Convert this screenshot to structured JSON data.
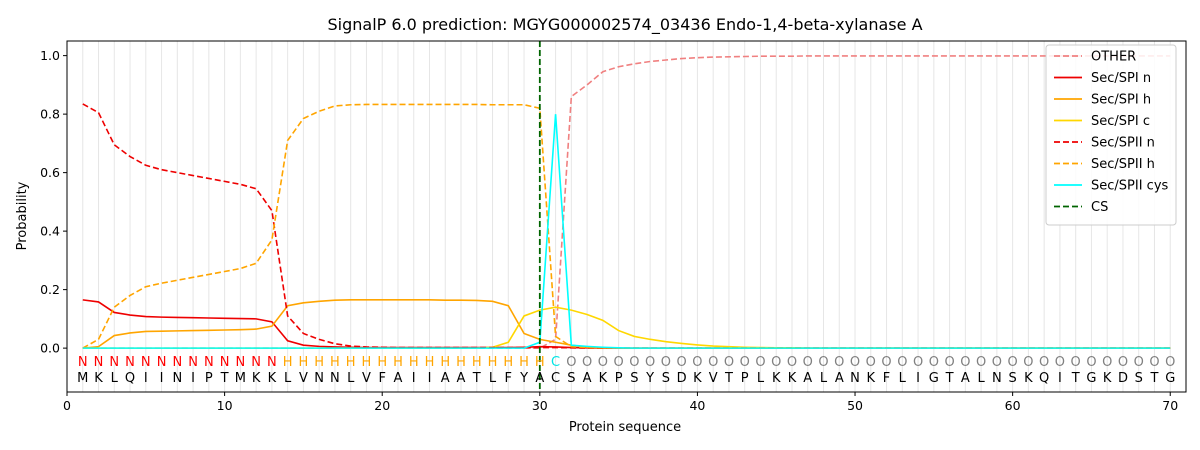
{
  "chart_data": {
    "type": "line",
    "title": "SignalP 6.0 prediction: MGYG000002574_03436 Endo-1,4-beta-xylanase A",
    "xlabel": "Protein sequence",
    "ylabel": "Probability",
    "xlim": [
      0,
      71
    ],
    "ylim": [
      -0.15,
      1.05
    ],
    "xticks": [
      0,
      10,
      20,
      30,
      40,
      50,
      60,
      70
    ],
    "yticks": [
      0.0,
      0.2,
      0.4,
      0.6,
      0.8,
      1.0
    ],
    "xtick_labels": [
      "0",
      "10",
      "20",
      "30",
      "40",
      "50",
      "60",
      "70"
    ],
    "ytick_labels": [
      "0.0",
      "0.2",
      "0.4",
      "0.6",
      "0.8",
      "1.0"
    ],
    "grid": "vertical lines at each residue",
    "legend_position": "top-right",
    "sequence": [
      "M",
      "K",
      "L",
      "Q",
      "I",
      "I",
      "N",
      "I",
      "P",
      "T",
      "M",
      "K",
      "K",
      "L",
      "V",
      "N",
      "N",
      "L",
      "V",
      "F",
      "A",
      "I",
      "I",
      "A",
      "A",
      "T",
      "L",
      "F",
      "Y",
      "A",
      "C",
      "S",
      "A",
      "K",
      "P",
      "S",
      "Y",
      "S",
      "D",
      "K",
      "V",
      "T",
      "P",
      "L",
      "K",
      "K",
      "A",
      "L",
      "A",
      "N",
      "K",
      "F",
      "L",
      "I",
      "G",
      "T",
      "A",
      "L",
      "N",
      "S",
      "K",
      "Q",
      "I",
      "T",
      "G",
      "K",
      "D",
      "S",
      "T",
      "G"
    ],
    "region_labels": [
      "N",
      "N",
      "N",
      "N",
      "N",
      "N",
      "N",
      "N",
      "N",
      "N",
      "N",
      "N",
      "N",
      "H",
      "H",
      "H",
      "H",
      "H",
      "H",
      "H",
      "H",
      "H",
      "H",
      "H",
      "H",
      "H",
      "H",
      "H",
      "H",
      "H",
      "C",
      "O",
      "O",
      "O",
      "O",
      "O",
      "O",
      "O",
      "O",
      "O",
      "O",
      "O",
      "O",
      "O",
      "O",
      "O",
      "O",
      "O",
      "O",
      "O",
      "O",
      "O",
      "O",
      "O",
      "O",
      "O",
      "O",
      "O",
      "O",
      "O",
      "O",
      "O",
      "O",
      "O",
      "O",
      "O",
      "O",
      "O",
      "O",
      "O"
    ],
    "region_colors": {
      "N": "#ff0000",
      "H": "#ffa500",
      "C": "#00e5e5",
      "O": "#808080"
    },
    "cleavage_site": 30,
    "series": [
      {
        "name": "OTHER",
        "color": "#f08080",
        "dash": "dashed",
        "values": [
          0,
          0,
          0,
          0,
          0,
          0,
          0,
          0,
          0,
          0,
          0,
          0,
          0,
          0,
          0,
          0,
          0,
          0,
          0,
          0,
          0,
          0,
          0,
          0,
          0,
          0,
          0,
          0,
          0,
          0,
          0.03,
          0.86,
          0.9,
          0.945,
          0.962,
          0.972,
          0.98,
          0.985,
          0.99,
          0.993,
          0.995,
          0.996,
          0.997,
          0.998,
          0.998,
          0.998,
          0.999,
          0.999,
          0.999,
          0.999,
          0.999,
          0.999,
          0.999,
          0.999,
          0.999,
          0.999,
          0.999,
          0.999,
          0.999,
          0.999,
          0.999,
          0.999,
          0.999,
          0.999,
          0.999,
          0.999,
          0.999,
          0.999,
          0.999,
          0.999
        ]
      },
      {
        "name": "Sec/SPI n",
        "color": "#ee0000",
        "dash": "solid",
        "values": [
          0.165,
          0.158,
          0.122,
          0.113,
          0.108,
          0.106,
          0.105,
          0.104,
          0.103,
          0.102,
          0.101,
          0.1,
          0.09,
          0.025,
          0.01,
          0.006,
          0.004,
          0.003,
          0.002,
          0.002,
          0.002,
          0.002,
          0.002,
          0.002,
          0.002,
          0.002,
          0.002,
          0.002,
          0.003,
          0.005,
          0.004,
          0.002,
          0.001,
          0,
          0,
          0,
          0,
          0,
          0,
          0,
          0,
          0,
          0,
          0,
          0,
          0,
          0,
          0,
          0,
          0,
          0,
          0,
          0,
          0,
          0,
          0,
          0,
          0,
          0,
          0,
          0,
          0,
          0,
          0,
          0,
          0,
          0,
          0,
          0,
          0
        ]
      },
      {
        "name": "Sec/SPI h",
        "color": "#ffa500",
        "dash": "solid",
        "values": [
          0,
          0.005,
          0.043,
          0.052,
          0.057,
          0.058,
          0.059,
          0.06,
          0.061,
          0.062,
          0.063,
          0.065,
          0.075,
          0.145,
          0.155,
          0.16,
          0.164,
          0.165,
          0.165,
          0.165,
          0.165,
          0.165,
          0.165,
          0.164,
          0.164,
          0.163,
          0.16,
          0.145,
          0.05,
          0.03,
          0.02,
          0.01,
          0.003,
          0.001,
          0,
          0,
          0,
          0,
          0,
          0,
          0,
          0,
          0,
          0,
          0,
          0,
          0,
          0,
          0,
          0,
          0,
          0,
          0,
          0,
          0,
          0,
          0,
          0,
          0,
          0,
          0,
          0,
          0,
          0,
          0,
          0,
          0,
          0,
          0,
          0
        ]
      },
      {
        "name": "Sec/SPI c",
        "color": "#ffd700",
        "dash": "solid",
        "values": [
          0,
          0,
          0,
          0,
          0,
          0,
          0,
          0,
          0,
          0,
          0,
          0,
          0,
          0,
          0,
          0,
          0,
          0,
          0,
          0,
          0,
          0,
          0,
          0,
          0,
          0,
          0.003,
          0.02,
          0.11,
          0.13,
          0.14,
          0.13,
          0.115,
          0.095,
          0.06,
          0.04,
          0.03,
          0.022,
          0.016,
          0.011,
          0.007,
          0.005,
          0.003,
          0.002,
          0.001,
          0.001,
          0,
          0,
          0,
          0,
          0,
          0,
          0,
          0,
          0,
          0,
          0,
          0,
          0,
          0,
          0,
          0,
          0,
          0,
          0,
          0,
          0,
          0,
          0,
          0
        ]
      },
      {
        "name": "Sec/SPII n",
        "color": "#ee0000",
        "dash": "dashed",
        "values": [
          0.835,
          0.805,
          0.695,
          0.655,
          0.625,
          0.61,
          0.6,
          0.59,
          0.58,
          0.57,
          0.56,
          0.545,
          0.47,
          0.11,
          0.05,
          0.03,
          0.015,
          0.007,
          0.004,
          0.003,
          0.002,
          0.002,
          0.002,
          0.002,
          0.002,
          0.002,
          0.002,
          0.002,
          0.002,
          0.002,
          0.002,
          0.001,
          0,
          0,
          0,
          0,
          0,
          0,
          0,
          0,
          0,
          0,
          0,
          0,
          0,
          0,
          0,
          0,
          0,
          0,
          0,
          0,
          0,
          0,
          0,
          0,
          0,
          0,
          0,
          0,
          0,
          0,
          0,
          0,
          0,
          0,
          0,
          0,
          0,
          0
        ]
      },
      {
        "name": "Sec/SPII h",
        "color": "#ffa500",
        "dash": "dashed",
        "values": [
          0,
          0.03,
          0.14,
          0.18,
          0.21,
          0.222,
          0.232,
          0.242,
          0.252,
          0.262,
          0.272,
          0.29,
          0.37,
          0.71,
          0.785,
          0.81,
          0.828,
          0.832,
          0.833,
          0.833,
          0.833,
          0.833,
          0.833,
          0.833,
          0.833,
          0.833,
          0.832,
          0.832,
          0.832,
          0.82,
          0.04,
          0.005,
          0.002,
          0.001,
          0,
          0,
          0,
          0,
          0,
          0,
          0,
          0,
          0,
          0,
          0,
          0,
          0,
          0,
          0,
          0,
          0,
          0,
          0,
          0,
          0,
          0,
          0,
          0,
          0,
          0,
          0,
          0,
          0,
          0,
          0,
          0,
          0,
          0,
          0,
          0
        ]
      },
      {
        "name": "Sec/SPII cys",
        "color": "#00ffff",
        "dash": "solid",
        "values": [
          0,
          0,
          0,
          0,
          0,
          0,
          0,
          0,
          0,
          0,
          0,
          0,
          0,
          0,
          0,
          0,
          0,
          0,
          0,
          0,
          0,
          0,
          0,
          0,
          0,
          0,
          0,
          0,
          0,
          0.02,
          0.8,
          0.01,
          0.006,
          0.003,
          0.001,
          0,
          0,
          0,
          0,
          0,
          0,
          0,
          0,
          0,
          0,
          0,
          0,
          0,
          0,
          0,
          0,
          0,
          0,
          0,
          0,
          0,
          0,
          0,
          0,
          0,
          0,
          0,
          0,
          0,
          0,
          0,
          0,
          0,
          0,
          0
        ]
      }
    ],
    "cs_series": {
      "name": "CS",
      "color": "#006400",
      "dash": "dashed"
    }
  }
}
